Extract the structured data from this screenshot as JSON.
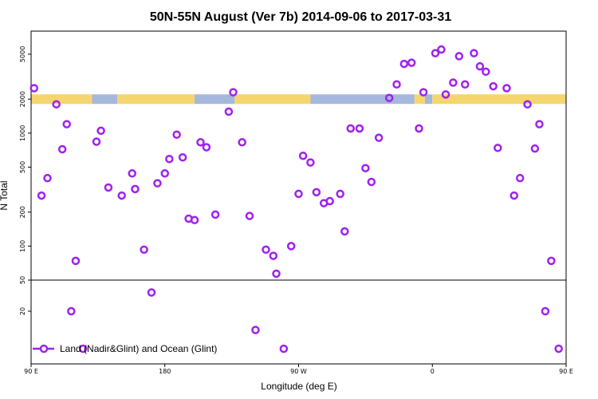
{
  "chart_data": {
    "type": "scatter",
    "title": "50N-55N August (Ver 7b)   2014-09-06 to 2017-03-31",
    "xlabel": "Longitude (deg E)",
    "ylabel": "N Total",
    "x_axis": {
      "range": [
        90,
        450
      ],
      "ticks": [
        90,
        180,
        270,
        360,
        450,
        540
      ],
      "tick_labels": [
        "90 E",
        "180",
        "90 W",
        "0",
        "90 E",
        "180"
      ]
    },
    "y_axis_upper": {
      "scale": "log",
      "range": [
        50,
        8000
      ],
      "ticks": [
        50,
        100,
        200,
        500,
        1000,
        2000,
        5000
      ],
      "tick_labels": [
        "50",
        "100",
        "200",
        "500",
        "1000",
        "2000",
        "5000"
      ]
    },
    "y_axis_lower": {
      "range": [
        0,
        50
      ],
      "ticks": [
        20
      ],
      "tick_labels": [
        "20"
      ]
    },
    "band_value": 2000,
    "colors": {
      "marker": "#a020f0",
      "land": "#f5d66e",
      "ocean": "#a5b8dc"
    },
    "land_ocean_band": [
      {
        "start": 90,
        "end": 131,
        "kind": "land"
      },
      {
        "start": 131,
        "end": 148,
        "kind": "ocean"
      },
      {
        "start": 148,
        "end": 200,
        "kind": "land"
      },
      {
        "start": 200,
        "end": 227,
        "kind": "ocean"
      },
      {
        "start": 227,
        "end": 278,
        "kind": "land"
      },
      {
        "start": 278,
        "end": 348,
        "kind": "ocean"
      },
      {
        "start": 348,
        "end": 355,
        "kind": "land"
      },
      {
        "start": 355,
        "end": 360,
        "kind": "ocean"
      },
      {
        "start": 360,
        "end": 454,
        "kind": "land"
      },
      {
        "start": 454,
        "end": 471,
        "kind": "ocean"
      },
      {
        "start": 471,
        "end": 512,
        "kind": "land"
      },
      {
        "start": 512,
        "end": 516,
        "kind": "ocean"
      },
      {
        "start": 516,
        "end": 540,
        "kind": "land"
      }
    ],
    "series": [
      {
        "name": "Land (Nadir&Glint) and Ocean (Glint)",
        "marker": "circle",
        "points": [
          {
            "x": 92,
            "y": 2500
          },
          {
            "x": 97,
            "y": 280
          },
          {
            "x": 101,
            "y": 400
          },
          {
            "x": 107,
            "y": 1800
          },
          {
            "x": 111,
            "y": 720
          },
          {
            "x": 114,
            "y": 1200
          },
          {
            "x": 117,
            "y": 20
          },
          {
            "x": 120,
            "y": 74
          },
          {
            "x": 125,
            "y": 10
          },
          {
            "x": 134,
            "y": 840
          },
          {
            "x": 137,
            "y": 1050
          },
          {
            "x": 142,
            "y": 330
          },
          {
            "x": 151,
            "y": 280
          },
          {
            "x": 158,
            "y": 440
          },
          {
            "x": 160,
            "y": 320
          },
          {
            "x": 166,
            "y": 93
          },
          {
            "x": 171,
            "y": 25
          },
          {
            "x": 175,
            "y": 360
          },
          {
            "x": 180,
            "y": 440
          },
          {
            "x": 183,
            "y": 590
          },
          {
            "x": 188,
            "y": 970
          },
          {
            "x": 192,
            "y": 610
          },
          {
            "x": 196,
            "y": 175
          },
          {
            "x": 200,
            "y": 170
          },
          {
            "x": 204,
            "y": 830
          },
          {
            "x": 208,
            "y": 750
          },
          {
            "x": 214,
            "y": 190
          },
          {
            "x": 223,
            "y": 1550
          },
          {
            "x": 226,
            "y": 2300
          },
          {
            "x": 232,
            "y": 830
          },
          {
            "x": 237,
            "y": 185
          },
          {
            "x": 241,
            "y": 15
          },
          {
            "x": 248,
            "y": 93
          },
          {
            "x": 253,
            "y": 82
          },
          {
            "x": 255,
            "y": 57
          },
          {
            "x": 260,
            "y": 10
          },
          {
            "x": 265,
            "y": 100
          },
          {
            "x": 270,
            "y": 290
          },
          {
            "x": 273,
            "y": 630
          },
          {
            "x": 278,
            "y": 550
          },
          {
            "x": 282,
            "y": 300
          },
          {
            "x": 287,
            "y": 240
          },
          {
            "x": 291,
            "y": 250
          },
          {
            "x": 298,
            "y": 290
          },
          {
            "x": 301,
            "y": 135
          },
          {
            "x": 305,
            "y": 1100
          },
          {
            "x": 311,
            "y": 1100
          },
          {
            "x": 315,
            "y": 490
          },
          {
            "x": 319,
            "y": 370
          },
          {
            "x": 324,
            "y": 910
          },
          {
            "x": 331,
            "y": 2050
          },
          {
            "x": 336,
            "y": 2700
          },
          {
            "x": 341,
            "y": 4100
          },
          {
            "x": 346,
            "y": 4200
          },
          {
            "x": 351,
            "y": 1100
          },
          {
            "x": 354,
            "y": 2300
          },
          {
            "x": 362,
            "y": 5100
          },
          {
            "x": 366,
            "y": 5500
          },
          {
            "x": 369,
            "y": 2200
          },
          {
            "x": 374,
            "y": 2800
          },
          {
            "x": 378,
            "y": 4800
          },
          {
            "x": 382,
            "y": 2700
          },
          {
            "x": 388,
            "y": 5100
          },
          {
            "x": 392,
            "y": 3900
          },
          {
            "x": 396,
            "y": 3500
          },
          {
            "x": 401,
            "y": 2600
          },
          {
            "x": 404,
            "y": 740
          },
          {
            "x": 410,
            "y": 2500
          },
          {
            "x": 415,
            "y": 280
          },
          {
            "x": 419,
            "y": 400
          },
          {
            "x": 424,
            "y": 1800
          },
          {
            "x": 429,
            "y": 730
          },
          {
            "x": 432,
            "y": 1200
          },
          {
            "x": 436,
            "y": 20
          },
          {
            "x": 440,
            "y": 74
          },
          {
            "x": 445,
            "y": 10
          },
          {
            "x": 454,
            "y": 840
          },
          {
            "x": 457,
            "y": 1050
          },
          {
            "x": 462,
            "y": 330
          },
          {
            "x": 471,
            "y": 280
          },
          {
            "x": 478,
            "y": 440
          },
          {
            "x": 480,
            "y": 320
          },
          {
            "x": 486,
            "y": 93
          }
        ]
      }
    ],
    "legend": {
      "position": "bottom-left",
      "label": "Land (Nadir&Glint) and Ocean (Glint)"
    }
  }
}
